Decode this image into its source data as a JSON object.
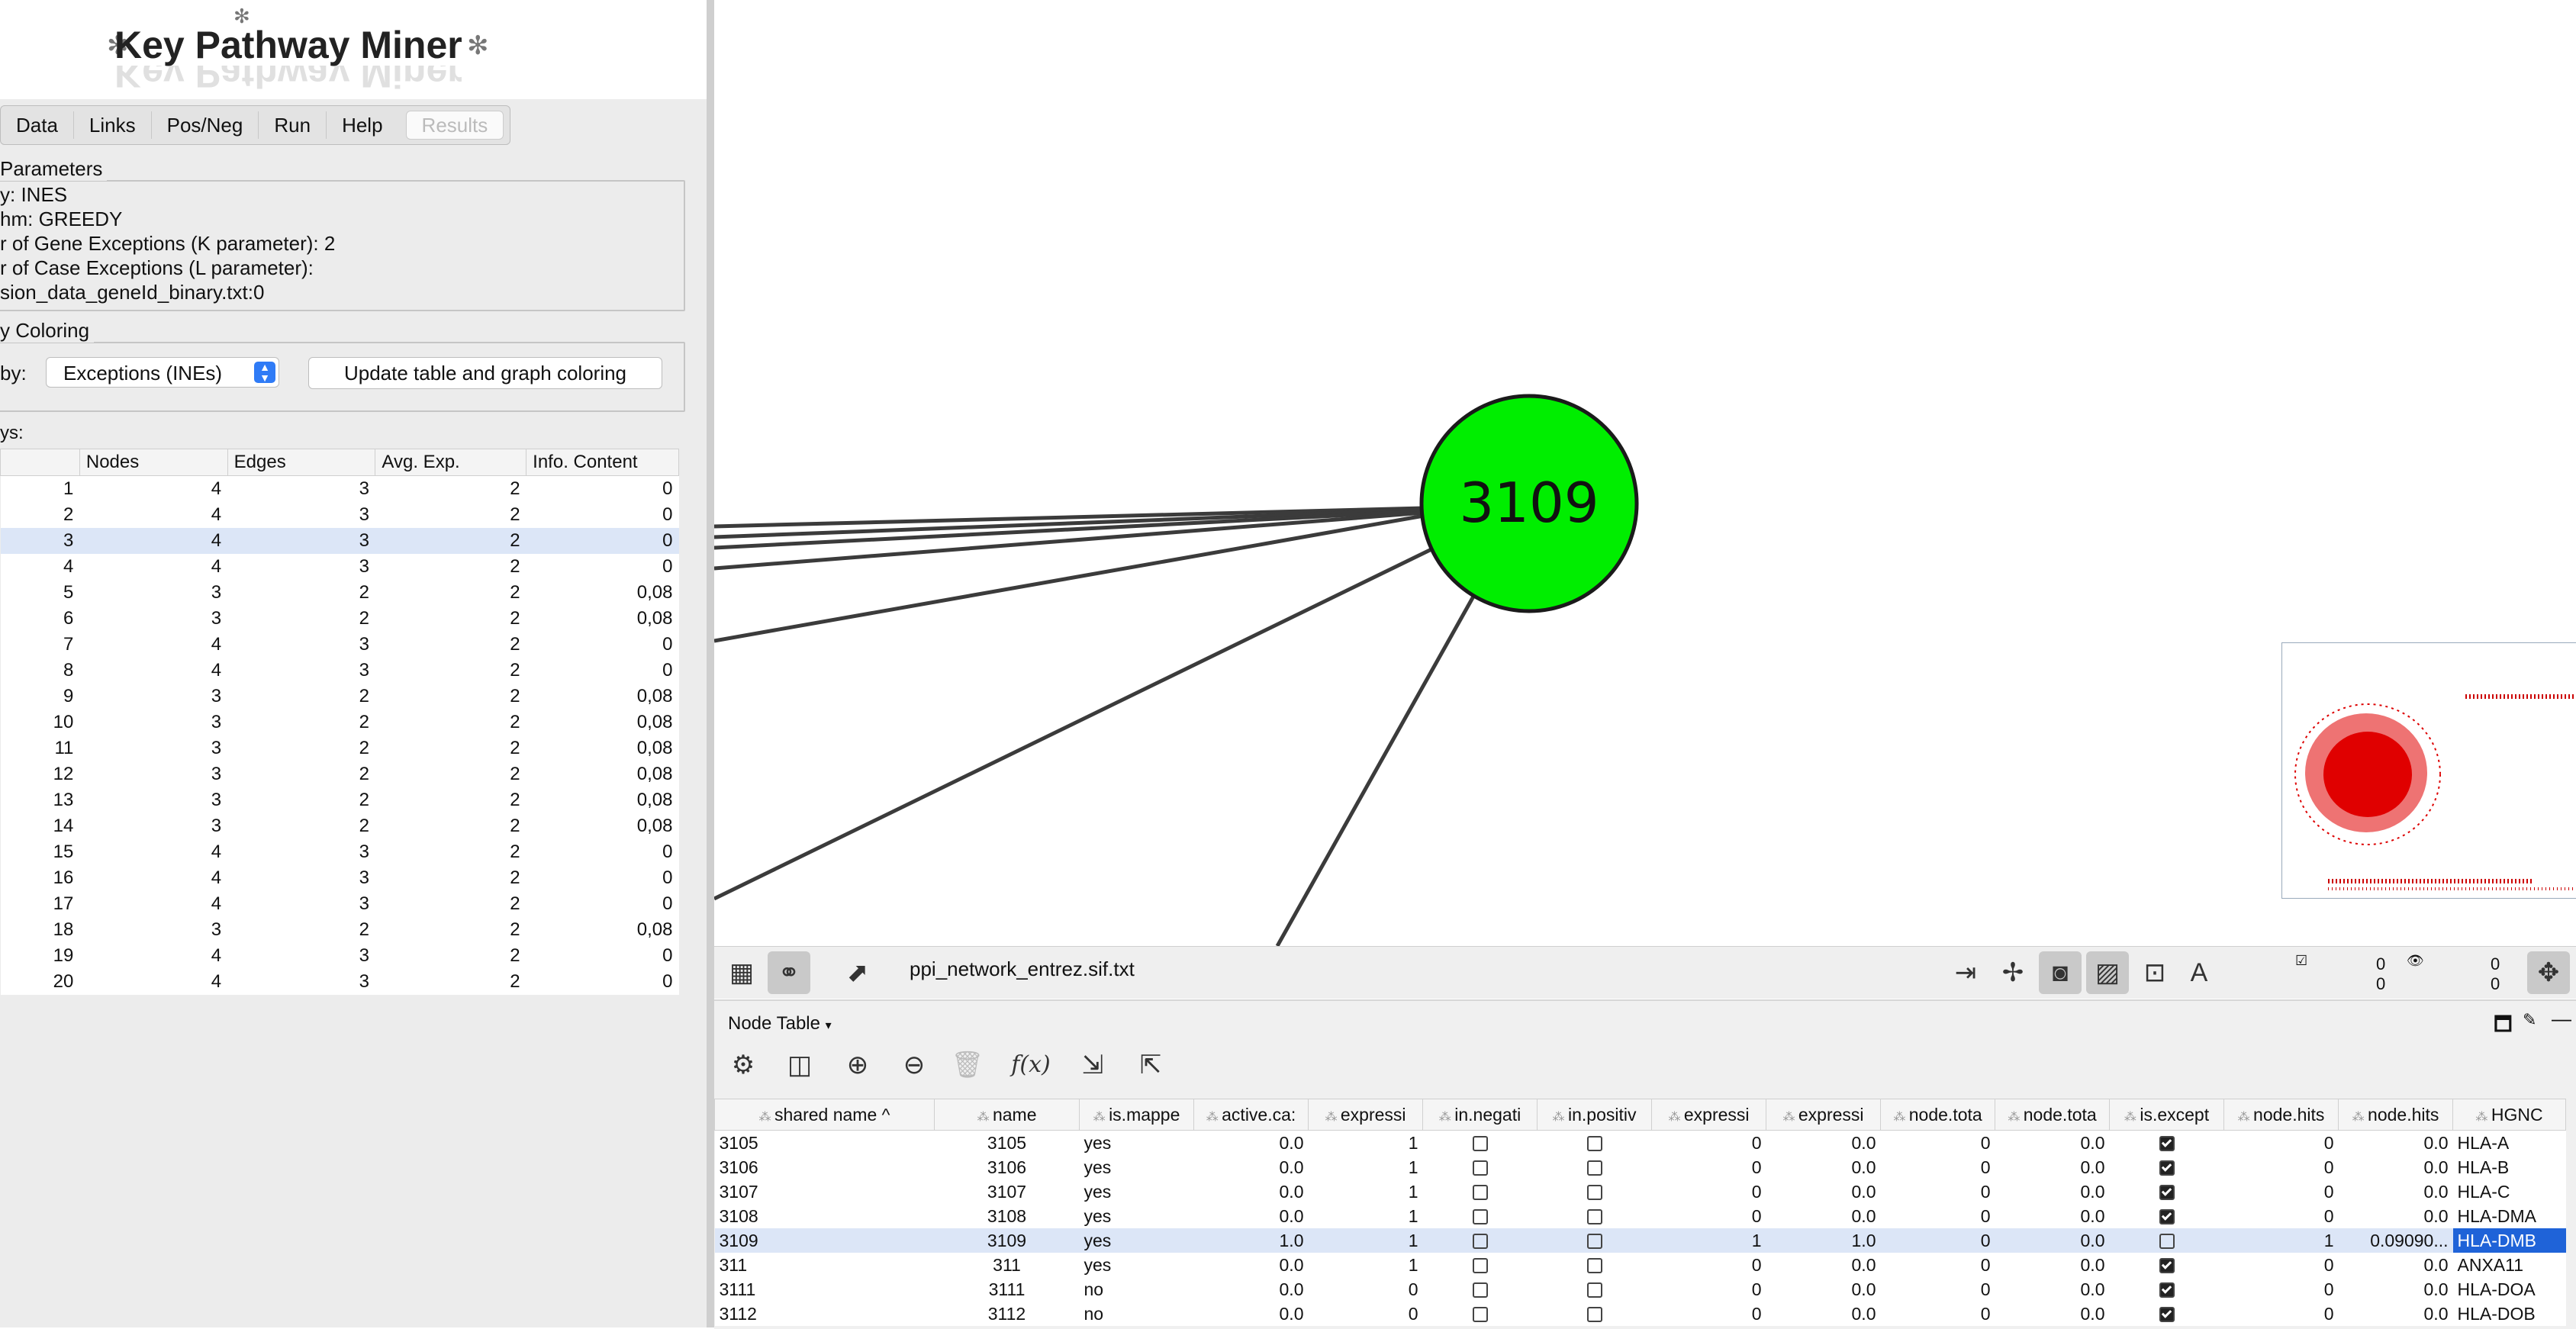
{
  "app": {
    "logo_text": "Key Pathway Miner"
  },
  "tabs": [
    "Data",
    "Links",
    "Pos/Neg",
    "Run",
    "Help",
    "Results"
  ],
  "parameters": {
    "legend": "Parameters",
    "lines": [
      "y: INES",
      "hm: GREEDY",
      "r of Gene Exceptions (K parameter): 2",
      "r of Case Exceptions (L parameter):",
      "sion_data_geneId_binary.txt:0"
    ]
  },
  "coloring": {
    "legend": "y Coloring",
    "by_label": "by:",
    "select_value": "Exceptions (INEs)",
    "update_button": "Update table and graph coloring"
  },
  "pathways": {
    "label": "ys:",
    "headers": [
      "",
      "Nodes",
      "Edges",
      "Avg. Exp.",
      "Info. Content"
    ],
    "rows": [
      [
        "1",
        "4",
        "3",
        "2",
        "0"
      ],
      [
        "2",
        "4",
        "3",
        "2",
        "0"
      ],
      [
        "3",
        "4",
        "3",
        "2",
        "0"
      ],
      [
        "4",
        "4",
        "3",
        "2",
        "0"
      ],
      [
        "5",
        "3",
        "2",
        "2",
        "0,08"
      ],
      [
        "6",
        "3",
        "2",
        "2",
        "0,08"
      ],
      [
        "7",
        "4",
        "3",
        "2",
        "0"
      ],
      [
        "8",
        "4",
        "3",
        "2",
        "0"
      ],
      [
        "9",
        "3",
        "2",
        "2",
        "0,08"
      ],
      [
        "10",
        "3",
        "2",
        "2",
        "0,08"
      ],
      [
        "11",
        "3",
        "2",
        "2",
        "0,08"
      ],
      [
        "12",
        "3",
        "2",
        "2",
        "0,08"
      ],
      [
        "13",
        "3",
        "2",
        "2",
        "0,08"
      ],
      [
        "14",
        "3",
        "2",
        "2",
        "0,08"
      ],
      [
        "15",
        "4",
        "3",
        "2",
        "0"
      ],
      [
        "16",
        "4",
        "3",
        "2",
        "0"
      ],
      [
        "17",
        "4",
        "3",
        "2",
        "0"
      ],
      [
        "18",
        "3",
        "2",
        "2",
        "0,08"
      ],
      [
        "19",
        "4",
        "3",
        "2",
        "0"
      ],
      [
        "20",
        "4",
        "3",
        "2",
        "0"
      ]
    ],
    "selected_index": 2
  },
  "network": {
    "node_label": "3109",
    "node_color": "#00ee00",
    "name": "ppi_network_entrez.sif.txt",
    "sel_counts": {
      "nodes_selected": "0",
      "nodes_total": "0",
      "edges_selected": "0",
      "edges_total": "0"
    }
  },
  "node_table": {
    "title": "Node Table",
    "headers": [
      "shared name",
      "name",
      "is.mappe",
      "active.ca:",
      "expressi",
      "in.negati",
      "in.positiv",
      "expressi",
      "expressi",
      "node.tota",
      "node.tota",
      "is.except",
      "node.hits",
      "node.hits",
      "HGNC"
    ],
    "rows": [
      [
        "3105",
        "3105",
        "yes",
        "0.0",
        "1",
        false,
        false,
        "0",
        "0.0",
        "0",
        "0.0",
        true,
        "0",
        "0.0",
        "HLA-A"
      ],
      [
        "3106",
        "3106",
        "yes",
        "0.0",
        "1",
        false,
        false,
        "0",
        "0.0",
        "0",
        "0.0",
        true,
        "0",
        "0.0",
        "HLA-B"
      ],
      [
        "3107",
        "3107",
        "yes",
        "0.0",
        "1",
        false,
        false,
        "0",
        "0.0",
        "0",
        "0.0",
        true,
        "0",
        "0.0",
        "HLA-C"
      ],
      [
        "3108",
        "3108",
        "yes",
        "0.0",
        "1",
        false,
        false,
        "0",
        "0.0",
        "0",
        "0.0",
        true,
        "0",
        "0.0",
        "HLA-DMA"
      ],
      [
        "3109",
        "3109",
        "yes",
        "1.0",
        "1",
        false,
        false,
        "1",
        "1.0",
        "0",
        "0.0",
        false,
        "1",
        "0.09090...",
        "HLA-DMB"
      ],
      [
        "311",
        "311",
        "yes",
        "0.0",
        "1",
        false,
        false,
        "0",
        "0.0",
        "0",
        "0.0",
        true,
        "0",
        "0.0",
        "ANXA11"
      ],
      [
        "3111",
        "3111",
        "no",
        "0.0",
        "0",
        false,
        false,
        "0",
        "0.0",
        "0",
        "0.0",
        true,
        "0",
        "0.0",
        "HLA-DOA"
      ],
      [
        "3112",
        "3112",
        "no",
        "0.0",
        "0",
        false,
        false,
        "0",
        "0.0",
        "0",
        "0.0",
        true,
        "0",
        "0.0",
        "HLA-DOB"
      ]
    ],
    "selected_index": 4
  }
}
